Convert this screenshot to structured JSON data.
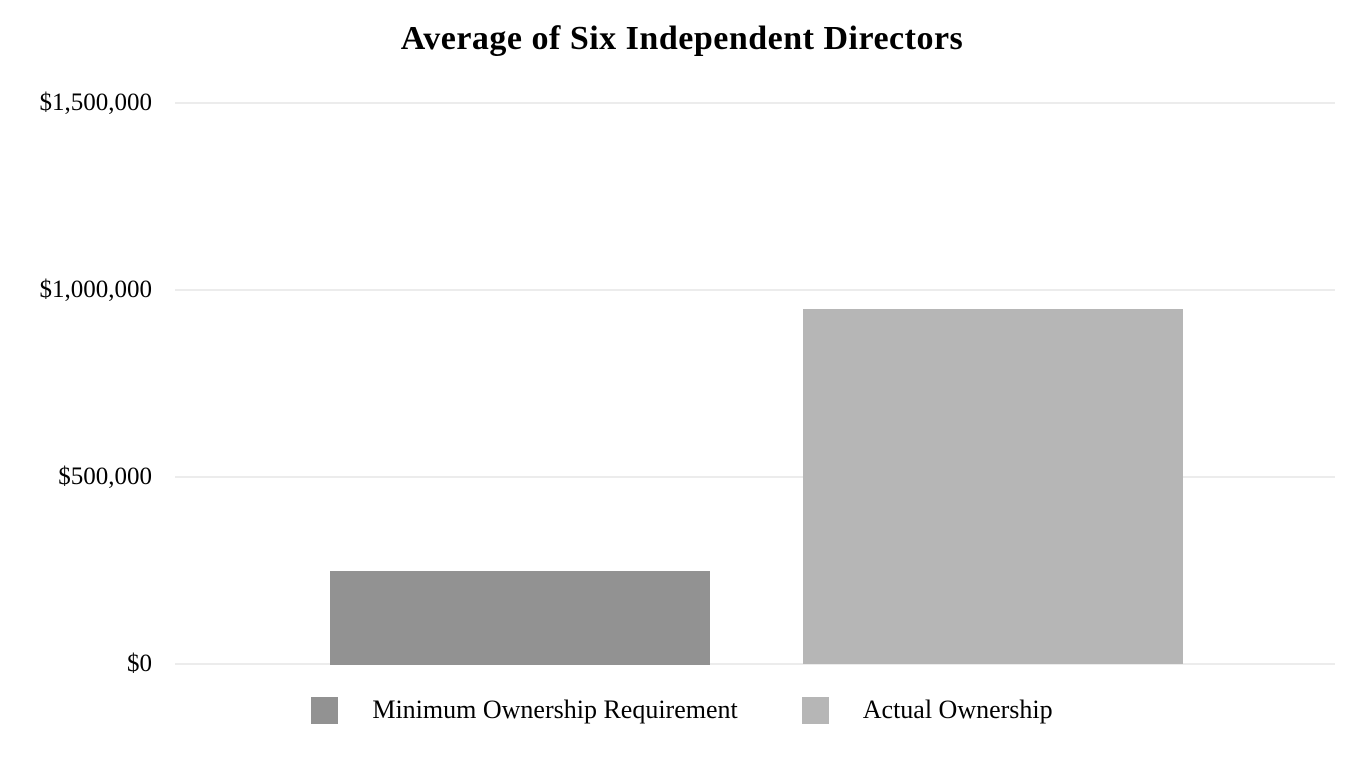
{
  "chart_data": {
    "type": "bar",
    "title": "Average of Six Independent Directors",
    "series": [
      {
        "name": "Minimum Ownership Requirement",
        "value": 250000,
        "color": "#929292"
      },
      {
        "name": "Actual Ownership",
        "value": 950000,
        "color": "#b6b6b6"
      }
    ],
    "yticks": [
      {
        "value": 0,
        "label": "$0"
      },
      {
        "value": 500000,
        "label": "$500,000"
      },
      {
        "value": 1000000,
        "label": "$1,000,000"
      },
      {
        "value": 1500000,
        "label": "$1,500,000"
      }
    ],
    "ylim": [
      0,
      1500000
    ],
    "xlabel": "",
    "ylabel": "",
    "grid": true,
    "legend_position": "bottom",
    "legend": [
      {
        "label": "Minimum Ownership Requirement",
        "color": "#929292"
      },
      {
        "label": "Actual Ownership",
        "color": "#b6b6b6"
      }
    ]
  },
  "colors": {
    "background": "#ffffff",
    "gridline": "#ececec",
    "text": "#000000"
  }
}
